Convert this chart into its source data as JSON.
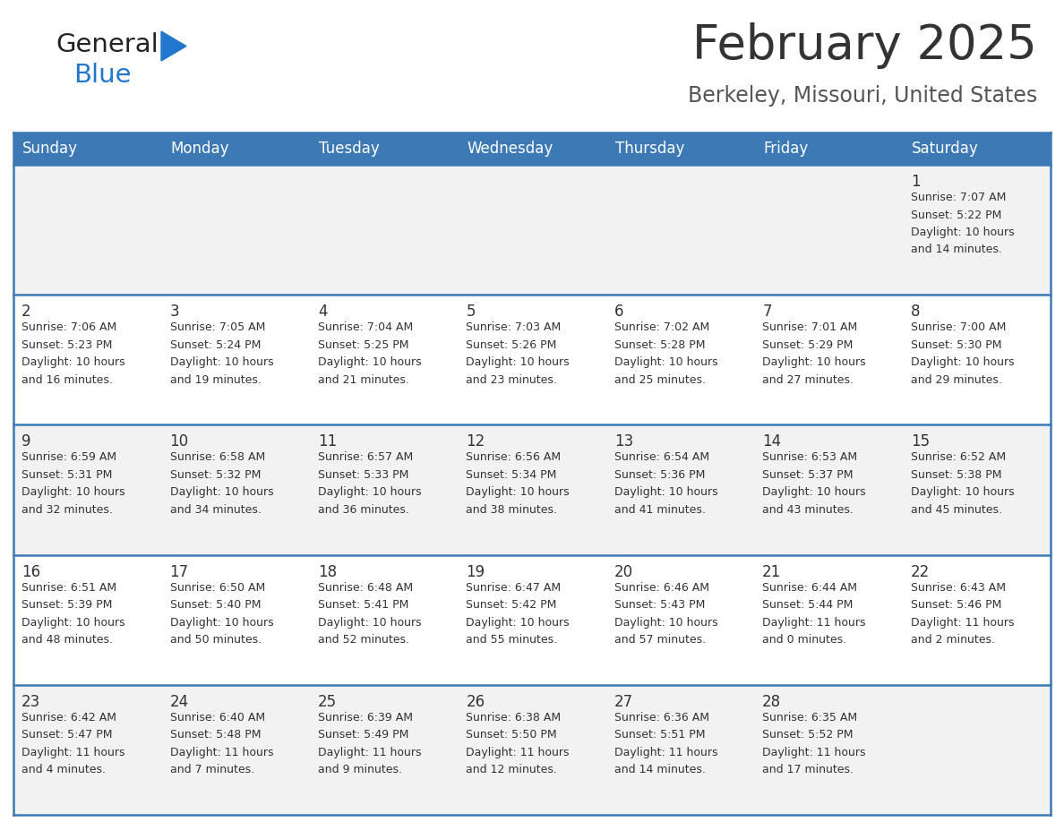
{
  "title": "February 2025",
  "subtitle": "Berkeley, Missouri, United States",
  "days_of_week": [
    "Sunday",
    "Monday",
    "Tuesday",
    "Wednesday",
    "Thursday",
    "Friday",
    "Saturday"
  ],
  "header_bg": "#3d7ab5",
  "header_text": "#ffffff",
  "row_bg_light": "#f2f2f2",
  "row_bg_white": "#ffffff",
  "cell_text_color": "#333333",
  "day_num_color": "#333333",
  "grid_line_color": "#3d7ab5",
  "title_color": "#333333",
  "subtitle_color": "#555555",
  "logo_general_color": "#222222",
  "logo_blue_color": "#2277cc",
  "calendar_data": [
    [
      null,
      null,
      null,
      null,
      null,
      null,
      {
        "day": 1,
        "sunrise": "7:07 AM",
        "sunset": "5:22 PM",
        "daylight": "10 hours and 14 minutes."
      }
    ],
    [
      {
        "day": 2,
        "sunrise": "7:06 AM",
        "sunset": "5:23 PM",
        "daylight": "10 hours and 16 minutes."
      },
      {
        "day": 3,
        "sunrise": "7:05 AM",
        "sunset": "5:24 PM",
        "daylight": "10 hours and 19 minutes."
      },
      {
        "day": 4,
        "sunrise": "7:04 AM",
        "sunset": "5:25 PM",
        "daylight": "10 hours and 21 minutes."
      },
      {
        "day": 5,
        "sunrise": "7:03 AM",
        "sunset": "5:26 PM",
        "daylight": "10 hours and 23 minutes."
      },
      {
        "day": 6,
        "sunrise": "7:02 AM",
        "sunset": "5:28 PM",
        "daylight": "10 hours and 25 minutes."
      },
      {
        "day": 7,
        "sunrise": "7:01 AM",
        "sunset": "5:29 PM",
        "daylight": "10 hours and 27 minutes."
      },
      {
        "day": 8,
        "sunrise": "7:00 AM",
        "sunset": "5:30 PM",
        "daylight": "10 hours and 29 minutes."
      }
    ],
    [
      {
        "day": 9,
        "sunrise": "6:59 AM",
        "sunset": "5:31 PM",
        "daylight": "10 hours and 32 minutes."
      },
      {
        "day": 10,
        "sunrise": "6:58 AM",
        "sunset": "5:32 PM",
        "daylight": "10 hours and 34 minutes."
      },
      {
        "day": 11,
        "sunrise": "6:57 AM",
        "sunset": "5:33 PM",
        "daylight": "10 hours and 36 minutes."
      },
      {
        "day": 12,
        "sunrise": "6:56 AM",
        "sunset": "5:34 PM",
        "daylight": "10 hours and 38 minutes."
      },
      {
        "day": 13,
        "sunrise": "6:54 AM",
        "sunset": "5:36 PM",
        "daylight": "10 hours and 41 minutes."
      },
      {
        "day": 14,
        "sunrise": "6:53 AM",
        "sunset": "5:37 PM",
        "daylight": "10 hours and 43 minutes."
      },
      {
        "day": 15,
        "sunrise": "6:52 AM",
        "sunset": "5:38 PM",
        "daylight": "10 hours and 45 minutes."
      }
    ],
    [
      {
        "day": 16,
        "sunrise": "6:51 AM",
        "sunset": "5:39 PM",
        "daylight": "10 hours and 48 minutes."
      },
      {
        "day": 17,
        "sunrise": "6:50 AM",
        "sunset": "5:40 PM",
        "daylight": "10 hours and 50 minutes."
      },
      {
        "day": 18,
        "sunrise": "6:48 AM",
        "sunset": "5:41 PM",
        "daylight": "10 hours and 52 minutes."
      },
      {
        "day": 19,
        "sunrise": "6:47 AM",
        "sunset": "5:42 PM",
        "daylight": "10 hours and 55 minutes."
      },
      {
        "day": 20,
        "sunrise": "6:46 AM",
        "sunset": "5:43 PM",
        "daylight": "10 hours and 57 minutes."
      },
      {
        "day": 21,
        "sunrise": "6:44 AM",
        "sunset": "5:44 PM",
        "daylight": "11 hours and 0 minutes."
      },
      {
        "day": 22,
        "sunrise": "6:43 AM",
        "sunset": "5:46 PM",
        "daylight": "11 hours and 2 minutes."
      }
    ],
    [
      {
        "day": 23,
        "sunrise": "6:42 AM",
        "sunset": "5:47 PM",
        "daylight": "11 hours and 4 minutes."
      },
      {
        "day": 24,
        "sunrise": "6:40 AM",
        "sunset": "5:48 PM",
        "daylight": "11 hours and 7 minutes."
      },
      {
        "day": 25,
        "sunrise": "6:39 AM",
        "sunset": "5:49 PM",
        "daylight": "11 hours and 9 minutes."
      },
      {
        "day": 26,
        "sunrise": "6:38 AM",
        "sunset": "5:50 PM",
        "daylight": "11 hours and 12 minutes."
      },
      {
        "day": 27,
        "sunrise": "6:36 AM",
        "sunset": "5:51 PM",
        "daylight": "11 hours and 14 minutes."
      },
      {
        "day": 28,
        "sunrise": "6:35 AM",
        "sunset": "5:52 PM",
        "daylight": "11 hours and 17 minutes."
      },
      null
    ]
  ]
}
